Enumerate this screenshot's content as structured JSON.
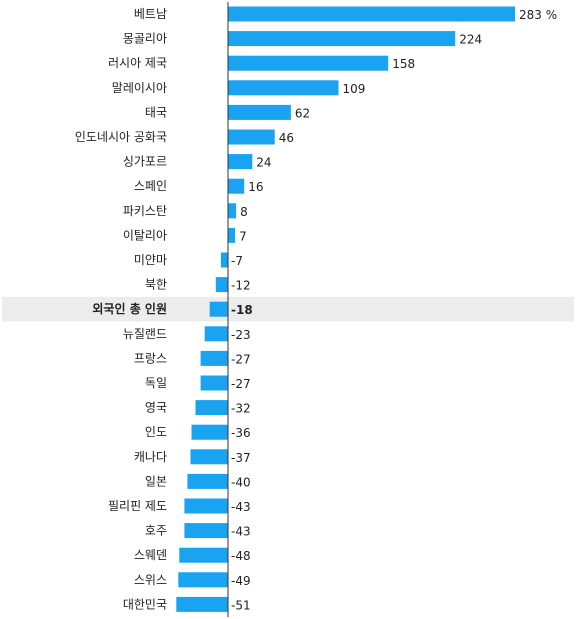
{
  "chart_data": {
    "type": "bar",
    "orientation": "horizontal",
    "categories": [
      "베트남",
      "몽골리아",
      "러시아 제국",
      "말레이시아",
      "태국",
      "인도네시아 공화국",
      "싱가포르",
      "스페인",
      "파키스탄",
      "이탈리아",
      "미얀마",
      "북한",
      "외국인 총 인원",
      "뉴질랜드",
      "프랑스",
      "독일",
      "영국",
      "인도",
      "캐나다",
      "일본",
      "필리핀 제도",
      "호주",
      "스웨덴",
      "스위스",
      "대한민국"
    ],
    "values": [
      283,
      224,
      158,
      109,
      62,
      46,
      24,
      16,
      8,
      7,
      -7,
      -12,
      -18,
      -23,
      -27,
      -27,
      -32,
      -36,
      -37,
      -40,
      -43,
      -43,
      -48,
      -49,
      -51
    ],
    "value_labels": [
      "283 %",
      "224",
      "158",
      "109",
      "62",
      "46",
      "24",
      "16",
      "8",
      "7",
      "-7",
      "-12",
      "-18",
      "-23",
      "-27",
      "-27",
      "-32",
      "-36",
      "-37",
      "-40",
      "-43",
      "-43",
      "-48",
      "-49",
      "-51"
    ],
    "highlight_category": "외국인 총 인원",
    "title": "",
    "xlabel": "",
    "ylabel": "",
    "xlim": [
      -51,
      283
    ],
    "bar_color": "#1aa3f0",
    "highlight_row_color": "#ececec",
    "axis_color": "#333333",
    "grid": false,
    "legend": "none"
  }
}
